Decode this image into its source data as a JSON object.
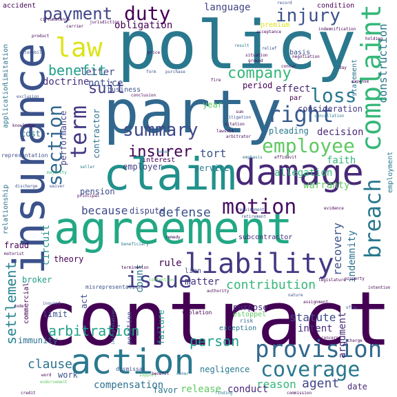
{
  "word_cloud": {
    "words": [
      {
        "text": "contract",
        "color": "#440154"
      },
      {
        "text": "policy",
        "color": "#2a788e"
      },
      {
        "text": "party",
        "color": "#31688e"
      },
      {
        "text": "agreement",
        "color": "#22a884"
      },
      {
        "text": "claim",
        "color": "#21918c"
      },
      {
        "text": "insurance",
        "color": "#3b528b"
      },
      {
        "text": "damage",
        "color": "#482878"
      },
      {
        "text": "action",
        "color": "#2a788e"
      },
      {
        "text": "liability",
        "color": "#443983"
      },
      {
        "text": "complaint",
        "color": "#35b779"
      },
      {
        "text": "provision",
        "color": "#31688e"
      },
      {
        "text": "coverage",
        "color": "#2a788e"
      },
      {
        "text": "motion",
        "color": "#471063"
      },
      {
        "text": "breach",
        "color": "#2a788e"
      },
      {
        "text": "issue",
        "color": "#433e85"
      },
      {
        "text": "right",
        "color": "#365c8d"
      },
      {
        "text": "section",
        "color": "#31688e"
      },
      {
        "text": "term",
        "color": "#443983"
      },
      {
        "text": "employee",
        "color": "#5ec962"
      },
      {
        "text": "law",
        "color": "#dde318"
      },
      {
        "text": "summary",
        "color": "#3e4989"
      },
      {
        "text": "payment",
        "color": "#404688"
      },
      {
        "text": "duty",
        "color": "#440154"
      },
      {
        "text": "injury",
        "color": "#3b528b"
      },
      {
        "text": "insurer",
        "color": "#440154"
      },
      {
        "text": "loss",
        "color": "#2a788e"
      },
      {
        "text": "company",
        "color": "#35b779"
      },
      {
        "text": "benefit",
        "color": "#1fa188"
      },
      {
        "text": "settlement",
        "color": "#26828e"
      },
      {
        "text": "arbitration",
        "color": "#1fa188"
      },
      {
        "text": "construction",
        "color": "#2a788e"
      },
      {
        "text": "suit",
        "color": "#433e85"
      },
      {
        "text": "because",
        "color": "#3e4989"
      },
      {
        "text": "defense",
        "color": "#3b528b"
      },
      {
        "text": "contribution",
        "color": "#35b779"
      },
      {
        "text": "person",
        "color": "#1f9e89"
      },
      {
        "text": "agent",
        "color": "#414487"
      },
      {
        "text": "clause",
        "color": "#2c728e"
      },
      {
        "text": "reason",
        "color": "#35b779"
      },
      {
        "text": "compensation",
        "color": "#2d708e"
      },
      {
        "text": "conduct",
        "color": "#482878"
      },
      {
        "text": "release",
        "color": "#5ec962"
      },
      {
        "text": "favor",
        "color": "#2a788e"
      },
      {
        "text": "tort",
        "color": "#3b528b"
      },
      {
        "text": "recovery",
        "color": "#3b528b"
      },
      {
        "text": "indemnity",
        "color": "#2c728e"
      },
      {
        "text": "argument",
        "color": "#482878"
      },
      {
        "text": "statute",
        "color": "#3e4989"
      },
      {
        "text": "intent",
        "color": "#472d7b"
      },
      {
        "text": "letter",
        "color": "#3e4989"
      },
      {
        "text": "notice",
        "color": "#3b528b"
      },
      {
        "text": "doctrine",
        "color": "#46327e"
      },
      {
        "text": "obligation",
        "color": "#440154"
      },
      {
        "text": "language",
        "color": "#414487"
      },
      {
        "text": "contractor",
        "color": "#2c728e"
      },
      {
        "text": "employer",
        "color": "#433e85"
      },
      {
        "text": "count",
        "color": "#2a788e"
      },
      {
        "text": "circuit",
        "color": "#21918c"
      },
      {
        "text": "rule",
        "color": "#440154"
      },
      {
        "text": "matter",
        "color": "#46327e"
      },
      {
        "text": "theory",
        "color": "#440154"
      },
      {
        "text": "broker",
        "color": "#1f9e89"
      },
      {
        "text": "limit",
        "color": "#3b528b"
      },
      {
        "text": "immunity",
        "color": "#2c728e"
      },
      {
        "text": "work",
        "color": "#3b528b"
      },
      {
        "text": "allegation",
        "color": "#35b779"
      },
      {
        "text": "warranty",
        "color": "#5ec962"
      },
      {
        "text": "decision",
        "color": "#482878"
      },
      {
        "text": "pleading",
        "color": "#2a788e"
      },
      {
        "text": "effect",
        "color": "#482878"
      },
      {
        "text": "period",
        "color": "#440154"
      },
      {
        "text": "consideration",
        "color": "#443983"
      },
      {
        "text": "faith",
        "color": "#35b779"
      },
      {
        "text": "interest",
        "color": "#440154"
      },
      {
        "text": "service",
        "color": "#2a788e"
      },
      {
        "text": "pension",
        "color": "#3e4989"
      },
      {
        "text": "dispute",
        "color": "#414487"
      },
      {
        "text": "fraud",
        "color": "#440154"
      },
      {
        "text": "year",
        "color": "#5ec962"
      },
      {
        "text": "performance",
        "color": "#414487"
      },
      {
        "text": "cost",
        "color": "#2c728e"
      },
      {
        "text": "premium",
        "color": "#dde318"
      },
      {
        "text": "condition",
        "color": "#440154"
      },
      {
        "text": "basis",
        "color": "#3b528b"
      },
      {
        "text": "accident",
        "color": "#440154"
      },
      {
        "text": "business",
        "color": "#3b528b"
      },
      {
        "text": "subcontractor",
        "color": "#472d7b"
      },
      {
        "text": "purpose",
        "color": "#46327e"
      },
      {
        "text": "statement",
        "color": "#2c728e"
      },
      {
        "text": "employment",
        "color": "#2a788e"
      },
      {
        "text": "application",
        "color": "#2a788e"
      },
      {
        "text": "limitation",
        "color": "#2c728e"
      },
      {
        "text": "relationship",
        "color": "#2c728e"
      },
      {
        "text": "commercial",
        "color": "#440154"
      },
      {
        "text": "failure",
        "color": "#1f9e89"
      },
      {
        "text": "negligence",
        "color": "#2a788e"
      },
      {
        "text": "lien",
        "color": "#3e4989"
      },
      {
        "text": "date",
        "color": "#482878"
      },
      {
        "text": "act",
        "color": "#3e4989"
      },
      {
        "text": "position",
        "color": "#3e4989"
      },
      {
        "text": "exception",
        "color": "#2a788e"
      },
      {
        "text": "estoppel",
        "color": "#5ec962"
      },
      {
        "text": "risk",
        "color": "#31688e"
      },
      {
        "text": "violation",
        "color": "#440154"
      },
      {
        "text": "representation",
        "color": "#3b528b"
      },
      {
        "text": "misrepresentation",
        "color": "#3b528b"
      },
      {
        "text": "dismissal",
        "color": "#3b528b"
      },
      {
        "text": "record",
        "color": "#3b528b"
      },
      {
        "text": "authority",
        "color": "#440154"
      },
      {
        "text": "nature",
        "color": "#3b528b"
      },
      {
        "text": "price",
        "color": "#440154"
      },
      {
        "text": "money",
        "color": "#2a788e"
      },
      {
        "text": "fire",
        "color": "#440154"
      },
      {
        "text": "relief",
        "color": "#3b528b"
      },
      {
        "text": "requirement",
        "color": "#3b528b"
      },
      {
        "text": "retirement",
        "color": "#3b528b"
      },
      {
        "text": "assignment",
        "color": "#440154"
      },
      {
        "text": "bad",
        "color": "#440154"
      },
      {
        "text": "offer",
        "color": "#3b528b"
      },
      {
        "text": "interpretation",
        "color": "#2a788e"
      },
      {
        "text": "commission",
        "color": "#440154"
      },
      {
        "text": "expense",
        "color": "#440154"
      },
      {
        "text": "credit",
        "color": "#440154"
      },
      {
        "text": "finding",
        "color": "#2a788e"
      },
      {
        "text": "support",
        "color": "#5ec962"
      },
      {
        "text": "owner",
        "color": "#2a788e"
      },
      {
        "text": "benefit",
        "color": "#440154"
      },
      {
        "text": "insured",
        "color": "#3b528b"
      },
      {
        "text": "word",
        "color": "#440154"
      },
      {
        "text": "endorsement",
        "color": "#5ec962"
      },
      {
        "text": "beneficiary",
        "color": "#2a788e"
      },
      {
        "text": "motorist",
        "color": "#440154"
      },
      {
        "text": "discharge",
        "color": "#3b528b"
      },
      {
        "text": "majority",
        "color": "#35b779"
      },
      {
        "text": "waiver",
        "color": "#3b528b"
      },
      {
        "text": "exclusion",
        "color": "#3b528b"
      },
      {
        "text": "knowledge",
        "color": "#440154"
      },
      {
        "text": "automobile",
        "color": "#3b528b"
      },
      {
        "text": "conclusion",
        "color": "#440154"
      },
      {
        "text": "purchase",
        "color": "#3b528b"
      },
      {
        "text": "litigation",
        "color": "#3b528b"
      },
      {
        "text": "citation",
        "color": "#440154"
      },
      {
        "text": "sum",
        "color": "#440154"
      },
      {
        "text": "arbitrator",
        "color": "#440154"
      },
      {
        "text": "lawsuit",
        "color": "#440154"
      },
      {
        "text": "emphasis",
        "color": "#2a788e"
      },
      {
        "text": "affidavit",
        "color": "#440154"
      },
      {
        "text": "contention",
        "color": "#5ec962"
      },
      {
        "text": "termination",
        "color": "#440154"
      },
      {
        "text": "remedy",
        "color": "#440154"
      },
      {
        "text": "jurisdiction",
        "color": "#440154"
      },
      {
        "text": "carrier",
        "color": "#440154"
      },
      {
        "text": "situation",
        "color": "#440154"
      },
      {
        "text": "ground",
        "color": "#440154"
      },
      {
        "text": "negotiation",
        "color": "#440154"
      },
      {
        "text": "principal",
        "color": "#440154"
      },
      {
        "text": "result",
        "color": "#2a788e"
      },
      {
        "text": "day",
        "color": "#440154"
      },
      {
        "text": "holding",
        "color": "#440154"
      },
      {
        "text": "indemnification",
        "color": "#440154"
      },
      {
        "text": "acceptance",
        "color": "#440154"
      },
      {
        "text": "product",
        "color": "#440154"
      },
      {
        "text": "legislature",
        "color": "#440154"
      },
      {
        "text": "property",
        "color": "#440154"
      },
      {
        "text": "intention",
        "color": "#440154"
      },
      {
        "text": "code",
        "color": "#440154"
      },
      {
        "text": "circumstance",
        "color": "#440154"
      },
      {
        "text": "cancellation",
        "color": "#2a788e"
      },
      {
        "text": "concur",
        "color": "#440154"
      },
      {
        "text": "par",
        "color": "#440154"
      },
      {
        "text": "evidence",
        "color": "#440154"
      },
      {
        "text": "form",
        "color": "#3b528b"
      },
      {
        "text": "seller",
        "color": "#2a788e"
      },
      {
        "text": "concern",
        "color": "#440154"
      },
      {
        "text": "charge",
        "color": "#440154"
      }
    ]
  }
}
